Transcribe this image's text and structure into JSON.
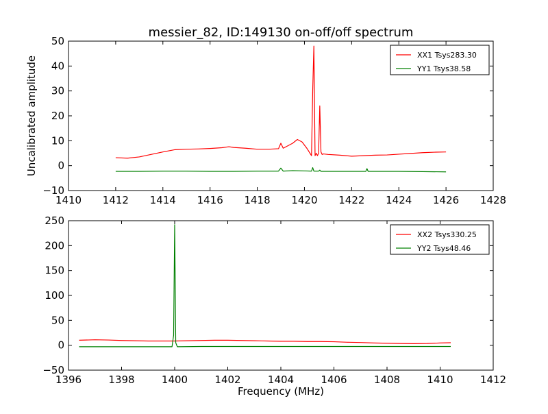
{
  "figure": {
    "title": "messier_82, ID:149130 on-off/off spectrum",
    "ylabel": "Uncalibrated amplitude",
    "xlabel": "Frequency (MHz)"
  },
  "chart_data": [
    {
      "type": "line",
      "xlim": [
        1410,
        1428
      ],
      "ylim": [
        -10,
        50
      ],
      "xticks": [
        1410,
        1412,
        1414,
        1416,
        1418,
        1420,
        1422,
        1424,
        1426,
        1428
      ],
      "yticks": [
        -10,
        0,
        10,
        20,
        30,
        40,
        50
      ],
      "xtick_labels": [
        "1410",
        "1412",
        "1414",
        "1416",
        "1418",
        "1420",
        "1422",
        "1424",
        "1426",
        "1428"
      ],
      "ytick_labels": [
        "−10",
        "0",
        "10",
        "20",
        "30",
        "40",
        "50"
      ],
      "legend_position": "top-right",
      "series": [
        {
          "name": "XX1 Tsys283.30",
          "color": "#ff0000",
          "x": [
            1412,
            1412.5,
            1413,
            1413.5,
            1414,
            1414.5,
            1415,
            1415.5,
            1416,
            1416.5,
            1416.8,
            1417,
            1417.5,
            1418,
            1418.5,
            1418.9,
            1419,
            1419.1,
            1419.3,
            1419.5,
            1419.7,
            1419.9,
            1420.1,
            1420.3,
            1420.35,
            1420.4,
            1420.45,
            1420.5,
            1420.55,
            1420.6,
            1420.65,
            1420.7,
            1420.75,
            1420.8,
            1421,
            1421.5,
            1422,
            1422.5,
            1423,
            1423.5,
            1424,
            1424.5,
            1425,
            1425.5,
            1426
          ],
          "y": [
            3.2,
            3.0,
            3.5,
            4.5,
            5.5,
            6.4,
            6.6,
            6.7,
            6.9,
            7.2,
            7.6,
            7.3,
            7.0,
            6.6,
            6.6,
            6.8,
            9.0,
            7.0,
            8.0,
            9.0,
            10.5,
            9.5,
            7.0,
            4.0,
            30.0,
            48.0,
            4.0,
            5.0,
            4.0,
            5.0,
            24.0,
            5.5,
            4.5,
            4.7,
            4.5,
            4.2,
            3.8,
            4.0,
            4.2,
            4.3,
            4.6,
            4.9,
            5.2,
            5.4,
            5.5
          ]
        },
        {
          "name": "YY1 Tsys38.58",
          "color": "#008000",
          "x": [
            1412,
            1413,
            1414,
            1415,
            1416,
            1417,
            1418,
            1418.9,
            1419,
            1419.1,
            1419.5,
            1420,
            1420.3,
            1420.35,
            1420.4,
            1420.5,
            1420.6,
            1420.65,
            1420.7,
            1421,
            1422,
            1422.6,
            1422.65,
            1422.7,
            1423,
            1424,
            1425,
            1426
          ],
          "y": [
            -2.3,
            -2.3,
            -2.2,
            -2.2,
            -2.3,
            -2.3,
            -2.2,
            -2.2,
            -1.0,
            -2.2,
            -2.0,
            -2.1,
            -2.2,
            -0.8,
            -2.2,
            -2.2,
            -2.2,
            -1.8,
            -2.3,
            -2.3,
            -2.3,
            -2.3,
            -1.2,
            -2.3,
            -2.3,
            -2.3,
            -2.4,
            -2.5
          ]
        }
      ]
    },
    {
      "type": "line",
      "xlim": [
        1396,
        1412
      ],
      "ylim": [
        -50,
        250
      ],
      "xticks": [
        1396,
        1398,
        1400,
        1402,
        1404,
        1406,
        1408,
        1410,
        1412
      ],
      "yticks": [
        -50,
        0,
        50,
        100,
        150,
        200,
        250
      ],
      "xtick_labels": [
        "1396",
        "1398",
        "1400",
        "1402",
        "1404",
        "1406",
        "1408",
        "1410",
        "1412"
      ],
      "ytick_labels": [
        "−50",
        "0",
        "50",
        "100",
        "150",
        "200",
        "250"
      ],
      "legend_position": "top-right",
      "series": [
        {
          "name": "XX2 Tsys330.25",
          "color": "#ff0000",
          "x": [
            1396.4,
            1397,
            1397.5,
            1398,
            1398.5,
            1399,
            1399.5,
            1400,
            1400.5,
            1401,
            1401.5,
            1402,
            1402.5,
            1403,
            1403.5,
            1404,
            1404.5,
            1405,
            1405.5,
            1406,
            1406.5,
            1407,
            1407.5,
            1408,
            1408.5,
            1409,
            1409.5,
            1410,
            1410.4
          ],
          "y": [
            10,
            11,
            10.5,
            9.5,
            9,
            8.5,
            8.5,
            8.5,
            9,
            9.5,
            10,
            10,
            9.5,
            9,
            8.5,
            8,
            8,
            7.5,
            7.5,
            7,
            6,
            5.5,
            4.5,
            4,
            3.5,
            3.2,
            3.5,
            4.5,
            5
          ]
        },
        {
          "name": "YY2 Tsys48.46",
          "color": "#008000",
          "x": [
            1396.4,
            1397,
            1398,
            1399,
            1399.9,
            1399.96,
            1400.0,
            1400.04,
            1400.1,
            1401,
            1402,
            1403,
            1404,
            1405,
            1406,
            1407,
            1408,
            1409,
            1410,
            1410.4
          ],
          "y": [
            -3,
            -3,
            -3,
            -3,
            -3,
            20,
            242,
            5,
            -3,
            -2.5,
            -2.5,
            -2.5,
            -2.5,
            -2.5,
            -2.5,
            -2.5,
            -2.5,
            -2.5,
            -2.5,
            -2.5
          ]
        }
      ]
    }
  ]
}
